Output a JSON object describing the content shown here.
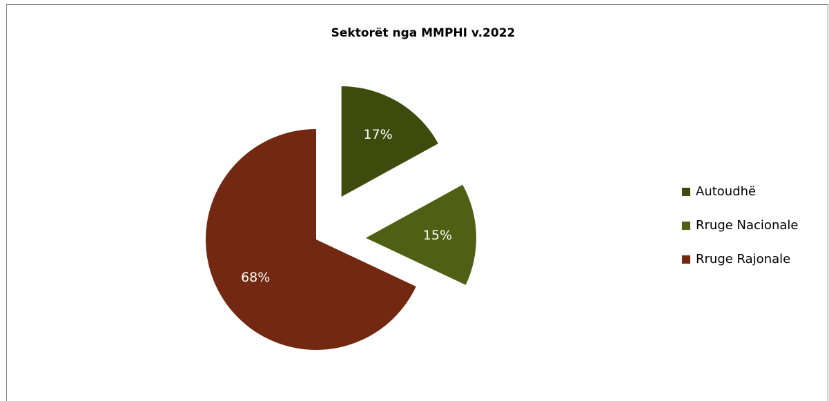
{
  "chart_data": {
    "type": "pie",
    "title": "Sektorët nga MMPHI v.2022",
    "categories": [
      "Autoudhë",
      "Rruge Nacionale",
      "Rruge Rajonale"
    ],
    "values": [
      17,
      15,
      68
    ],
    "value_labels": [
      "17%",
      "15%",
      "68%"
    ],
    "colors": [
      "#3f4a0d",
      "#4f5f14",
      "#722811"
    ],
    "exploded": [
      true,
      true,
      false
    ],
    "legend": "right"
  }
}
